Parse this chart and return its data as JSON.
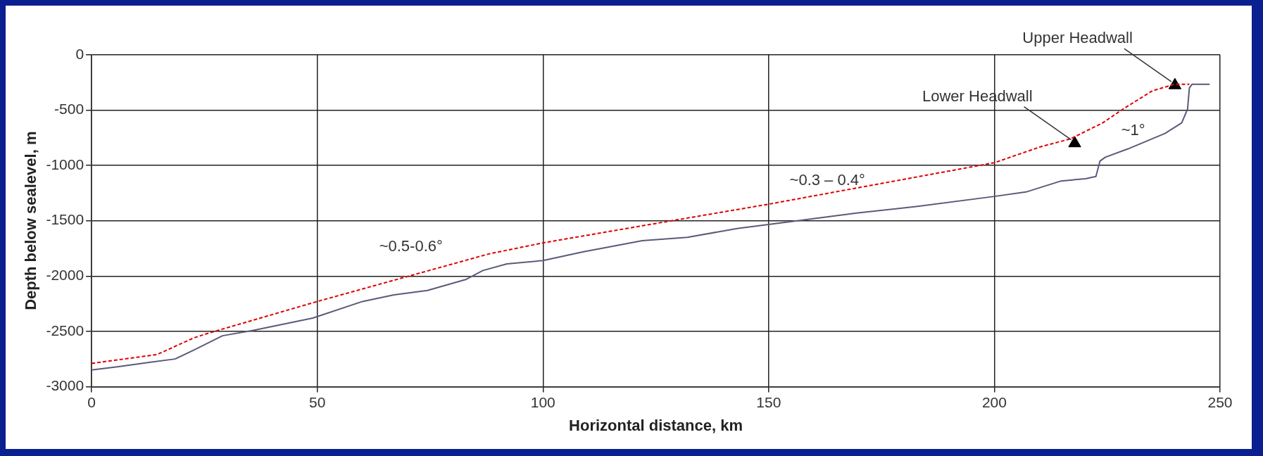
{
  "chart_data": {
    "type": "line",
    "xlabel": "Horizontal distance, km",
    "ylabel": "Depth below sealevel, m",
    "xlim": [
      0,
      250
    ],
    "xticks": [
      0,
      50,
      100,
      150,
      200,
      250
    ],
    "ylim": [
      -3000,
      0
    ],
    "yticks": [
      -3000,
      -2500,
      -2000,
      -1500,
      -1000,
      -500,
      0
    ],
    "grid": true,
    "legend": false,
    "series": [
      {
        "color": "#5a5a7a",
        "line_style": "solid",
        "marker": "none",
        "x": [
          0,
          6,
          13,
          18.5,
          22.6,
          29,
          36,
          49,
          60,
          67,
          74.4,
          83,
          86.7,
          92,
          100,
          109,
          122,
          132,
          143,
          154.5,
          169.5,
          183,
          200,
          207,
          214.8,
          220.2,
          222.5,
          223.4,
          224.6,
          229.6,
          237.8,
          241.5,
          242.8,
          243.2,
          243.8,
          247.7
        ],
        "values": [
          -2850,
          -2820,
          -2780,
          -2750,
          -2670,
          -2540,
          -2490,
          -2380,
          -2230,
          -2170,
          -2130,
          -2030,
          -1950,
          -1890,
          -1860,
          -1780,
          -1680,
          -1650,
          -1570,
          -1510,
          -1430,
          -1370,
          -1280,
          -1240,
          -1140,
          -1120,
          -1100,
          -960,
          -925,
          -850,
          -710,
          -615,
          -490,
          -300,
          -265,
          -265
        ]
      },
      {
        "color": "#e00000",
        "line_style": "dashed",
        "marker": "none",
        "x": [
          0,
          14.5,
          22.6,
          25.6,
          50,
          88,
          100,
          128.5,
          150,
          200,
          210.3,
          216.8,
          224,
          228.5,
          235,
          240,
          243.2
        ],
        "values": [
          -2790,
          -2710,
          -2560,
          -2520,
          -2230,
          -1800,
          -1700,
          -1500,
          -1350,
          -975,
          -830,
          -760,
          -615,
          -490,
          -325,
          -265,
          -265
        ]
      },
      {
        "type": "scatter",
        "color": "#000000",
        "marker": "triangle",
        "x": [
          217.8,
          240
        ],
        "values": [
          -800,
          -275
        ]
      }
    ],
    "annotations": [
      "~0.5-0.6°",
      "~0.3 – 0.4°",
      "~1°",
      {
        "text": "Lower Headwall",
        "x": 217.8,
        "y": -800
      },
      {
        "text": "Upper Headwall",
        "x": 240,
        "y": -275
      }
    ]
  }
}
